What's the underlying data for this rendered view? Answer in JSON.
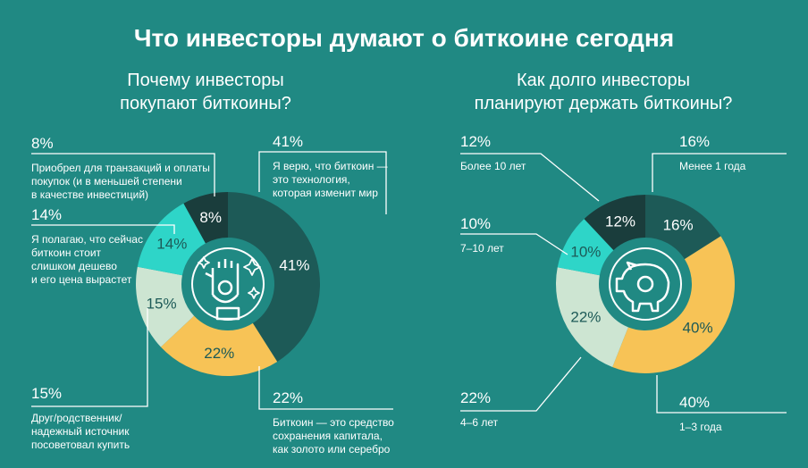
{
  "title": "Что инвесторы думают о биткоине сегодня",
  "chart_data": [
    {
      "type": "donut",
      "title": [
        "Почему инвесторы",
        "покупают биткоины?"
      ],
      "categories": [
        [
          "Я верю, что биткоин —",
          "это технология,",
          "которая изменит мир"
        ],
        [
          "Биткоин — это средство",
          "сохранения капитала,",
          "как золото или серебро"
        ],
        [
          "Друг/родственник/",
          "надежный источник",
          "посоветовал купить"
        ],
        [
          "Я полагаю, что сейчас",
          "биткоин стоит",
          "слишком дешево",
          "и его цена вырастет"
        ],
        [
          "Приобрел для транзакций и оплаты",
          "покупок (и в меньшей степени",
          "в качестве инвестиций)"
        ]
      ],
      "values": [
        41,
        22,
        15,
        14,
        8
      ],
      "value_labels": [
        "41%",
        "22%",
        "15%",
        "14%",
        "8%"
      ],
      "colors": [
        "#1d5a57",
        "#f7c356",
        "#cde5d2",
        "#2ed5c8",
        "#1a3d3c"
      ]
    },
    {
      "type": "donut",
      "title": [
        "Как долго инвесторы",
        "планируют держать биткоины?"
      ],
      "categories": [
        [
          "Менее 1 года"
        ],
        [
          "1–3 года"
        ],
        [
          "4–6 лет"
        ],
        [
          "7–10 лет"
        ],
        [
          "Более 10 лет"
        ]
      ],
      "values": [
        16,
        40,
        22,
        10,
        12
      ],
      "value_labels": [
        "16%",
        "40%",
        "22%",
        "10%",
        "12%"
      ],
      "colors": [
        "#1d5a57",
        "#f7c356",
        "#cde5d2",
        "#2ed5c8",
        "#1a3d3c"
      ]
    }
  ]
}
